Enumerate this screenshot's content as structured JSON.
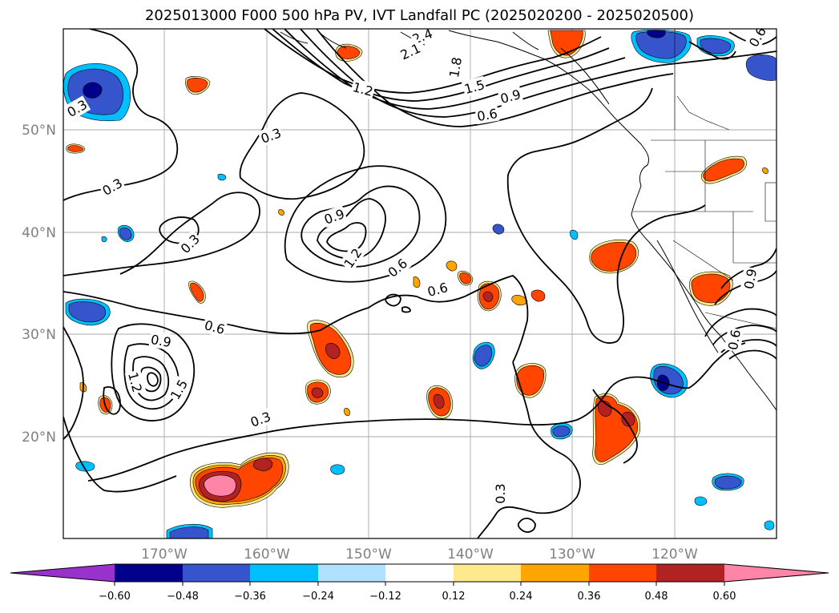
{
  "title": "2025013000 F000 500 hPa PV, IVT Landfall PC (2025020200 - 2025020500)",
  "lat_labels": [
    "50°N",
    "40°N",
    "30°N",
    "20°N"
  ],
  "lon_labels": [
    "170°W",
    "160°W",
    "150°W",
    "140°W",
    "130°W",
    "120°W"
  ],
  "contour_labels": [
    {
      "text": "2.4",
      "angle": -20
    },
    {
      "text": "2.1",
      "angle": -25
    },
    {
      "text": "1.8",
      "angle": -80
    },
    {
      "text": "1.5",
      "angle": -15
    },
    {
      "text": "1.2",
      "angle": 15
    },
    {
      "text": "0.9",
      "angle": -15
    },
    {
      "text": "0.6",
      "angle": -10
    },
    {
      "text": "0.6",
      "angle": -60
    },
    {
      "text": "0.3",
      "angle": -30
    },
    {
      "text": "0.3",
      "angle": -20
    },
    {
      "text": "0.3",
      "angle": -30
    },
    {
      "text": "0.3",
      "angle": -45
    },
    {
      "text": "0.9",
      "angle": -20
    },
    {
      "text": "1.2",
      "angle": -55
    },
    {
      "text": "0.6",
      "angle": -40
    },
    {
      "text": "0.6",
      "angle": -15
    },
    {
      "text": "0.6",
      "angle": 15
    },
    {
      "text": "0.9",
      "angle": 10
    },
    {
      "text": "1.2",
      "angle": 75
    },
    {
      "text": "1.5",
      "angle": -60
    },
    {
      "text": "0.3",
      "angle": -20
    },
    {
      "text": "0.3",
      "angle": -90
    },
    {
      "text": "0.9",
      "angle": -80
    },
    {
      "text": "0.6",
      "angle": -80
    }
  ],
  "colorbar": {
    "ticks": [
      "−0.60",
      "−0.48",
      "−0.36",
      "−0.24",
      "−0.12",
      "0.12",
      "0.24",
      "0.36",
      "0.48",
      "0.60"
    ],
    "colors": {
      "under": "#9932cc",
      "bins": [
        "#00008b",
        "#3655cc",
        "#00bfff",
        "#b0e2ff",
        "#ffffff",
        "#ffe98f",
        "#ffa500",
        "#ff4500",
        "#b22222"
      ],
      "over": "#ff85a8"
    }
  }
}
